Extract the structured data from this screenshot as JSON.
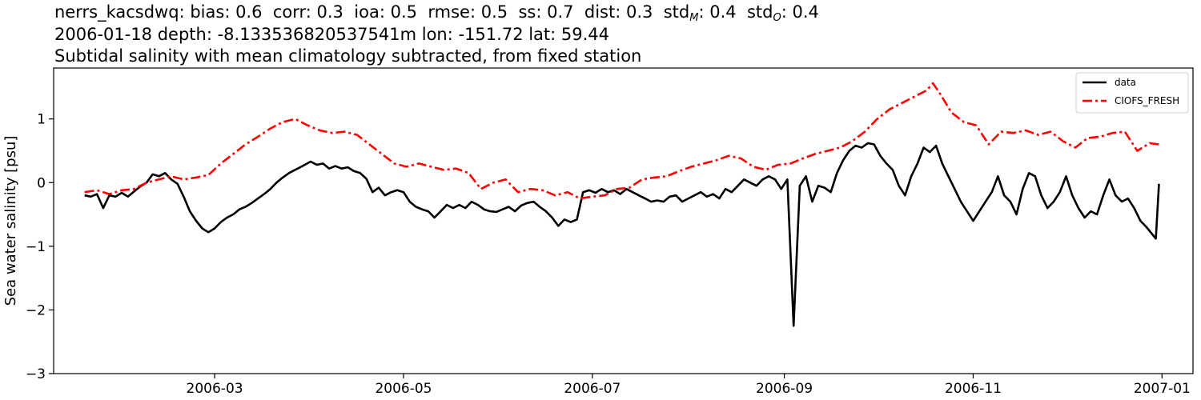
{
  "header": {
    "station": "nerrs_kacsdwq",
    "stats": [
      {
        "label": "bias",
        "value": "0.6"
      },
      {
        "label": "corr",
        "value": "0.3"
      },
      {
        "label": "ioa",
        "value": "0.5"
      },
      {
        "label": "rmse",
        "value": "0.5"
      },
      {
        "label": "ss",
        "value": "0.7"
      },
      {
        "label": "dist",
        "value": "0.3"
      },
      {
        "label": "std",
        "sub": "M",
        "value": "0.4"
      },
      {
        "label": "std",
        "sub": "O",
        "value": "0.4"
      }
    ],
    "line2": "2006-01-18 depth: -8.133536820537541m lon: -151.72 lat: 59.44",
    "line3": "Subtidal salinity with mean climatology subtracted, from fixed station"
  },
  "chart_data": {
    "type": "line",
    "title": "",
    "xlabel": "",
    "ylabel": "Sea water salinity [psu]",
    "xlim": [
      "2006-01-08",
      "2007-01-11"
    ],
    "ylim": [
      -3.0,
      1.8
    ],
    "x_ticks": [
      "2006-03",
      "2006-05",
      "2006-07",
      "2006-09",
      "2006-11",
      "2007-01"
    ],
    "y_ticks": [
      -3,
      -2,
      -1,
      0,
      1
    ],
    "y_tick_labels": [
      "−3",
      "−2",
      "−1",
      "0",
      "1"
    ],
    "grid": false,
    "legend_position": "top-right",
    "series": [
      {
        "name": "data",
        "color": "#000000",
        "style": "solid",
        "points": [
          [
            "2006-01-18",
            -0.2
          ],
          [
            "2006-01-20",
            -0.22
          ],
          [
            "2006-01-22",
            -0.18
          ],
          [
            "2006-01-24",
            -0.4
          ],
          [
            "2006-01-26",
            -0.2
          ],
          [
            "2006-01-28",
            -0.22
          ],
          [
            "2006-01-30",
            -0.16
          ],
          [
            "2006-02-01",
            -0.22
          ],
          [
            "2006-02-03",
            -0.14
          ],
          [
            "2006-02-05",
            -0.06
          ],
          [
            "2006-02-07",
            0.0
          ],
          [
            "2006-02-09",
            0.13
          ],
          [
            "2006-02-11",
            0.1
          ],
          [
            "2006-02-13",
            0.15
          ],
          [
            "2006-02-15",
            0.05
          ],
          [
            "2006-02-17",
            -0.02
          ],
          [
            "2006-02-19",
            -0.22
          ],
          [
            "2006-02-21",
            -0.45
          ],
          [
            "2006-02-23",
            -0.6
          ],
          [
            "2006-02-25",
            -0.72
          ],
          [
            "2006-02-27",
            -0.78
          ],
          [
            "2006-03-01",
            -0.72
          ],
          [
            "2006-03-03",
            -0.62
          ],
          [
            "2006-03-05",
            -0.55
          ],
          [
            "2006-03-07",
            -0.5
          ],
          [
            "2006-03-09",
            -0.42
          ],
          [
            "2006-03-11",
            -0.38
          ],
          [
            "2006-03-13",
            -0.32
          ],
          [
            "2006-03-15",
            -0.25
          ],
          [
            "2006-03-17",
            -0.18
          ],
          [
            "2006-03-19",
            -0.1
          ],
          [
            "2006-03-21",
            0.0
          ],
          [
            "2006-03-23",
            0.08
          ],
          [
            "2006-03-25",
            0.15
          ],
          [
            "2006-03-27",
            0.2
          ],
          [
            "2006-03-29",
            0.25
          ],
          [
            "2006-04-01",
            0.33
          ],
          [
            "2006-04-03",
            0.28
          ],
          [
            "2006-04-05",
            0.3
          ],
          [
            "2006-04-07",
            0.22
          ],
          [
            "2006-04-09",
            0.26
          ],
          [
            "2006-04-11",
            0.22
          ],
          [
            "2006-04-13",
            0.24
          ],
          [
            "2006-04-15",
            0.18
          ],
          [
            "2006-04-17",
            0.15
          ],
          [
            "2006-04-19",
            0.06
          ],
          [
            "2006-04-21",
            -0.15
          ],
          [
            "2006-04-23",
            -0.08
          ],
          [
            "2006-04-25",
            -0.2
          ],
          [
            "2006-04-27",
            -0.15
          ],
          [
            "2006-04-29",
            -0.12
          ],
          [
            "2006-05-01",
            -0.15
          ],
          [
            "2006-05-03",
            -0.3
          ],
          [
            "2006-05-05",
            -0.38
          ],
          [
            "2006-05-07",
            -0.42
          ],
          [
            "2006-05-09",
            -0.45
          ],
          [
            "2006-05-11",
            -0.55
          ],
          [
            "2006-05-13",
            -0.45
          ],
          [
            "2006-05-15",
            -0.35
          ],
          [
            "2006-05-17",
            -0.4
          ],
          [
            "2006-05-19",
            -0.35
          ],
          [
            "2006-05-21",
            -0.4
          ],
          [
            "2006-05-23",
            -0.3
          ],
          [
            "2006-05-25",
            -0.35
          ],
          [
            "2006-05-27",
            -0.42
          ],
          [
            "2006-05-29",
            -0.45
          ],
          [
            "2006-05-31",
            -0.46
          ],
          [
            "2006-06-02",
            -0.42
          ],
          [
            "2006-06-04",
            -0.38
          ],
          [
            "2006-06-06",
            -0.45
          ],
          [
            "2006-06-08",
            -0.36
          ],
          [
            "2006-06-10",
            -0.32
          ],
          [
            "2006-06-12",
            -0.3
          ],
          [
            "2006-06-14",
            -0.38
          ],
          [
            "2006-06-16",
            -0.45
          ],
          [
            "2006-06-18",
            -0.55
          ],
          [
            "2006-06-20",
            -0.68
          ],
          [
            "2006-06-22",
            -0.58
          ],
          [
            "2006-06-24",
            -0.62
          ],
          [
            "2006-06-26",
            -0.58
          ],
          [
            "2006-06-28",
            -0.15
          ],
          [
            "2006-06-30",
            -0.12
          ],
          [
            "2006-07-02",
            -0.16
          ],
          [
            "2006-07-04",
            -0.1
          ],
          [
            "2006-07-06",
            -0.15
          ],
          [
            "2006-07-08",
            -0.12
          ],
          [
            "2006-07-10",
            -0.18
          ],
          [
            "2006-07-12",
            -0.1
          ],
          [
            "2006-07-14",
            -0.15
          ],
          [
            "2006-07-16",
            -0.2
          ],
          [
            "2006-07-18",
            -0.25
          ],
          [
            "2006-07-20",
            -0.3
          ],
          [
            "2006-07-22",
            -0.28
          ],
          [
            "2006-07-24",
            -0.3
          ],
          [
            "2006-07-26",
            -0.22
          ],
          [
            "2006-07-28",
            -0.2
          ],
          [
            "2006-07-30",
            -0.3
          ],
          [
            "2006-08-01",
            -0.25
          ],
          [
            "2006-08-03",
            -0.2
          ],
          [
            "2006-08-05",
            -0.15
          ],
          [
            "2006-08-07",
            -0.22
          ],
          [
            "2006-08-09",
            -0.18
          ],
          [
            "2006-08-11",
            -0.25
          ],
          [
            "2006-08-13",
            -0.1
          ],
          [
            "2006-08-15",
            -0.15
          ],
          [
            "2006-08-17",
            -0.05
          ],
          [
            "2006-08-19",
            0.05
          ],
          [
            "2006-08-21",
            0.0
          ],
          [
            "2006-08-23",
            -0.05
          ],
          [
            "2006-08-25",
            0.05
          ],
          [
            "2006-08-27",
            0.1
          ],
          [
            "2006-08-29",
            0.05
          ],
          [
            "2006-08-31",
            -0.1
          ],
          [
            "2006-09-02",
            0.05
          ],
          [
            "2006-09-04",
            -2.25
          ],
          [
            "2006-09-06",
            -0.05
          ],
          [
            "2006-09-08",
            0.1
          ],
          [
            "2006-09-10",
            -0.3
          ],
          [
            "2006-09-12",
            -0.05
          ],
          [
            "2006-09-14",
            -0.08
          ],
          [
            "2006-09-16",
            -0.15
          ],
          [
            "2006-09-18",
            0.15
          ],
          [
            "2006-09-20",
            0.35
          ],
          [
            "2006-09-22",
            0.5
          ],
          [
            "2006-09-24",
            0.58
          ],
          [
            "2006-09-26",
            0.55
          ],
          [
            "2006-09-28",
            0.62
          ],
          [
            "2006-09-30",
            0.6
          ],
          [
            "2006-10-02",
            0.42
          ],
          [
            "2006-10-04",
            0.3
          ],
          [
            "2006-10-06",
            0.2
          ],
          [
            "2006-10-08",
            -0.05
          ],
          [
            "2006-10-10",
            -0.2
          ],
          [
            "2006-10-12",
            0.1
          ],
          [
            "2006-10-14",
            0.3
          ],
          [
            "2006-10-16",
            0.55
          ],
          [
            "2006-10-18",
            0.48
          ],
          [
            "2006-10-20",
            0.58
          ],
          [
            "2006-10-22",
            0.3
          ],
          [
            "2006-10-24",
            0.1
          ],
          [
            "2006-10-26",
            -0.1
          ],
          [
            "2006-10-28",
            -0.3
          ],
          [
            "2006-10-30",
            -0.45
          ],
          [
            "2006-11-01",
            -0.6
          ],
          [
            "2006-11-03",
            -0.45
          ],
          [
            "2006-11-05",
            -0.3
          ],
          [
            "2006-11-07",
            -0.15
          ],
          [
            "2006-11-09",
            0.1
          ],
          [
            "2006-11-11",
            -0.2
          ],
          [
            "2006-11-13",
            -0.3
          ],
          [
            "2006-11-15",
            -0.5
          ],
          [
            "2006-11-17",
            -0.1
          ],
          [
            "2006-11-19",
            0.15
          ],
          [
            "2006-11-21",
            0.1
          ],
          [
            "2006-11-23",
            -0.2
          ],
          [
            "2006-11-25",
            -0.4
          ],
          [
            "2006-11-27",
            -0.3
          ],
          [
            "2006-11-29",
            -0.15
          ],
          [
            "2006-12-01",
            0.1
          ],
          [
            "2006-12-03",
            -0.2
          ],
          [
            "2006-12-05",
            -0.4
          ],
          [
            "2006-12-07",
            -0.55
          ],
          [
            "2006-12-09",
            -0.45
          ],
          [
            "2006-12-11",
            -0.5
          ],
          [
            "2006-12-13",
            -0.2
          ],
          [
            "2006-12-15",
            0.05
          ],
          [
            "2006-12-17",
            -0.2
          ],
          [
            "2006-12-19",
            -0.3
          ],
          [
            "2006-12-21",
            -0.25
          ],
          [
            "2006-12-23",
            -0.4
          ],
          [
            "2006-12-25",
            -0.6
          ],
          [
            "2006-12-27",
            -0.7
          ],
          [
            "2006-12-29",
            -0.82
          ],
          [
            "2006-12-30",
            -0.88
          ],
          [
            "2006-12-31",
            -0.02
          ]
        ]
      },
      {
        "name": "CIOFS_FRESH",
        "color": "#ff0000",
        "style": "dashdot",
        "points": [
          [
            "2006-01-18",
            -0.15
          ],
          [
            "2006-01-22",
            -0.12
          ],
          [
            "2006-01-26",
            -0.18
          ],
          [
            "2006-01-30",
            -0.12
          ],
          [
            "2006-02-03",
            -0.1
          ],
          [
            "2006-02-07",
            0.0
          ],
          [
            "2006-02-11",
            0.05
          ],
          [
            "2006-02-15",
            0.1
          ],
          [
            "2006-02-19",
            0.05
          ],
          [
            "2006-02-23",
            0.08
          ],
          [
            "2006-02-27",
            0.12
          ],
          [
            "2006-03-03",
            0.3
          ],
          [
            "2006-03-07",
            0.45
          ],
          [
            "2006-03-11",
            0.6
          ],
          [
            "2006-03-15",
            0.72
          ],
          [
            "2006-03-19",
            0.85
          ],
          [
            "2006-03-23",
            0.95
          ],
          [
            "2006-03-27",
            1.0
          ],
          [
            "2006-03-31",
            0.9
          ],
          [
            "2006-04-04",
            0.82
          ],
          [
            "2006-04-08",
            0.78
          ],
          [
            "2006-04-12",
            0.8
          ],
          [
            "2006-04-16",
            0.75
          ],
          [
            "2006-04-20",
            0.6
          ],
          [
            "2006-04-24",
            0.45
          ],
          [
            "2006-04-28",
            0.3
          ],
          [
            "2006-05-02",
            0.25
          ],
          [
            "2006-05-06",
            0.3
          ],
          [
            "2006-05-10",
            0.25
          ],
          [
            "2006-05-14",
            0.2
          ],
          [
            "2006-05-18",
            0.22
          ],
          [
            "2006-05-22",
            0.15
          ],
          [
            "2006-05-26",
            -0.1
          ],
          [
            "2006-05-30",
            0.0
          ],
          [
            "2006-06-03",
            0.05
          ],
          [
            "2006-06-07",
            -0.15
          ],
          [
            "2006-06-11",
            -0.1
          ],
          [
            "2006-06-15",
            -0.12
          ],
          [
            "2006-06-19",
            -0.2
          ],
          [
            "2006-06-23",
            -0.15
          ],
          [
            "2006-06-27",
            -0.25
          ],
          [
            "2006-07-01",
            -0.22
          ],
          [
            "2006-07-05",
            -0.2
          ],
          [
            "2006-07-09",
            -0.1
          ],
          [
            "2006-07-13",
            -0.08
          ],
          [
            "2006-07-17",
            0.05
          ],
          [
            "2006-07-21",
            0.08
          ],
          [
            "2006-07-25",
            0.1
          ],
          [
            "2006-07-29",
            0.18
          ],
          [
            "2006-08-02",
            0.25
          ],
          [
            "2006-08-06",
            0.3
          ],
          [
            "2006-08-10",
            0.35
          ],
          [
            "2006-08-14",
            0.42
          ],
          [
            "2006-08-18",
            0.38
          ],
          [
            "2006-08-22",
            0.25
          ],
          [
            "2006-08-26",
            0.2
          ],
          [
            "2006-08-30",
            0.28
          ],
          [
            "2006-09-03",
            0.3
          ],
          [
            "2006-09-07",
            0.38
          ],
          [
            "2006-09-11",
            0.45
          ],
          [
            "2006-09-15",
            0.5
          ],
          [
            "2006-09-19",
            0.55
          ],
          [
            "2006-09-23",
            0.65
          ],
          [
            "2006-09-27",
            0.8
          ],
          [
            "2006-10-01",
            1.0
          ],
          [
            "2006-10-05",
            1.15
          ],
          [
            "2006-10-09",
            1.25
          ],
          [
            "2006-10-13",
            1.35
          ],
          [
            "2006-10-17",
            1.45
          ],
          [
            "2006-10-19",
            1.56
          ],
          [
            "2006-10-21",
            1.42
          ],
          [
            "2006-10-25",
            1.1
          ],
          [
            "2006-10-29",
            0.95
          ],
          [
            "2006-11-02",
            0.9
          ],
          [
            "2006-11-06",
            0.6
          ],
          [
            "2006-11-10",
            0.8
          ],
          [
            "2006-11-14",
            0.78
          ],
          [
            "2006-11-18",
            0.82
          ],
          [
            "2006-11-22",
            0.75
          ],
          [
            "2006-11-26",
            0.8
          ],
          [
            "2006-11-30",
            0.65
          ],
          [
            "2006-12-04",
            0.55
          ],
          [
            "2006-12-08",
            0.7
          ],
          [
            "2006-12-12",
            0.72
          ],
          [
            "2006-12-16",
            0.78
          ],
          [
            "2006-12-20",
            0.8
          ],
          [
            "2006-12-24",
            0.5
          ],
          [
            "2006-12-28",
            0.62
          ],
          [
            "2006-12-31",
            0.6
          ]
        ]
      }
    ]
  }
}
